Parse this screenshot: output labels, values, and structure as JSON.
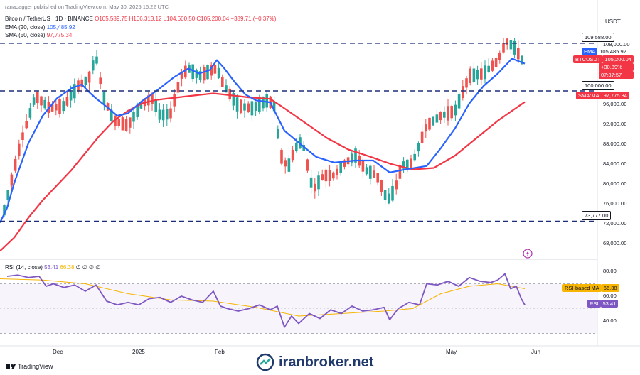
{
  "header": {
    "title": "ranadagger published on TradingView.com, May 30, 2025 16:22 UTC"
  },
  "legend": {
    "symbol": "Bitcoin / TetherUS · 1D · BINANCE",
    "ohlc": "O105,589.75 H106,313.12 L104,600.50 C105,200.04 −389.71 (−0.37%)",
    "ema_label": "EMA (20, close)",
    "ema_value": "105,485.92",
    "sma_label": "SMA (50, close)",
    "sma_value": "97,775.34",
    "rsi_label": "RSI (14, close)",
    "rsi_value": "53.41",
    "rsi_ma_value": "66.38",
    "rsi_extra": "∅ ∅ ∅ ∅"
  },
  "axis": {
    "currency": "USDT",
    "price_ticks": [
      "108,000.00",
      "96,000.00",
      "92,000.00",
      "88,000.00",
      "84,000.00",
      "80,000.00",
      "76,000.00",
      "72,000.00",
      "68,000.00"
    ],
    "rsi_ticks": [
      "80.00",
      "60.00",
      "40.00"
    ],
    "time_labels": [
      "Dec",
      "2025",
      "Feb",
      "May",
      "Jun"
    ]
  },
  "tags": {
    "r1": "109,588.00",
    "ema": "EMA",
    "ema_val": "105,485.92",
    "sym": "BTCUSDT",
    "sym_val": "105,200.04",
    "pct": "+30.89%",
    "timer": "07:37:57",
    "r2": "100,000.00",
    "sma": "SMA:MA",
    "sma_val": "97,775.34",
    "s1": "73,777.00",
    "rsi_ma": "RSI-based MA",
    "rsi_ma_val": "66.38",
    "rsi": "RSI",
    "rsi_val": "53.41"
  },
  "footer": {
    "logo_text": "TradingView",
    "watermark": "iranbroker.net"
  },
  "colors": {
    "up": "#26a69a",
    "down": "#ef5350",
    "ema": "#2962ff",
    "sma": "#f23645",
    "rsi": "#7e57c2",
    "rsi_ma": "#f7b500",
    "level": "#1e2f7a"
  },
  "chart_data": {
    "type": "candlestick",
    "horizontal_levels": [
      109588,
      100000,
      73777
    ],
    "ema_20": [
      [
        0,
        73500
      ],
      [
        10,
        76500
      ],
      [
        20,
        81500
      ],
      [
        40,
        89500
      ],
      [
        60,
        95000
      ],
      [
        80,
        98500
      ],
      [
        100,
        100500
      ],
      [
        115,
        101300
      ],
      [
        125,
        99800
      ],
      [
        135,
        98500
      ],
      [
        150,
        96800
      ],
      [
        165,
        95000
      ],
      [
        180,
        95500
      ],
      [
        200,
        98000
      ],
      [
        220,
        100000
      ],
      [
        245,
        102800
      ],
      [
        265,
        104500
      ],
      [
        280,
        103500
      ],
      [
        295,
        104200
      ],
      [
        305,
        106200
      ],
      [
        315,
        104600
      ],
      [
        330,
        101800
      ],
      [
        345,
        99300
      ],
      [
        360,
        98100
      ],
      [
        380,
        97700
      ],
      [
        400,
        92000
      ],
      [
        425,
        89000
      ],
      [
        445,
        86700
      ],
      [
        470,
        85600
      ],
      [
        500,
        86000
      ],
      [
        525,
        86000
      ],
      [
        548,
        83600
      ],
      [
        570,
        84200
      ],
      [
        600,
        84900
      ],
      [
        620,
        88500
      ],
      [
        640,
        92500
      ],
      [
        660,
        97500
      ],
      [
        680,
        101000
      ],
      [
        700,
        103500
      ],
      [
        720,
        106500
      ],
      [
        738,
        105486
      ]
    ],
    "sma_50": [
      [
        0,
        67800
      ],
      [
        20,
        70500
      ],
      [
        40,
        74500
      ],
      [
        60,
        78000
      ],
      [
        80,
        81000
      ],
      [
        100,
        84000
      ],
      [
        120,
        87500
      ],
      [
        140,
        91000
      ],
      [
        160,
        94000
      ],
      [
        180,
        96000
      ],
      [
        200,
        97500
      ],
      [
        220,
        98200
      ],
      [
        250,
        98700
      ],
      [
        280,
        99200
      ],
      [
        300,
        99500
      ],
      [
        320,
        99200
      ],
      [
        350,
        98700
      ],
      [
        380,
        98400
      ],
      [
        400,
        96500
      ],
      [
        430,
        93500
      ],
      [
        460,
        90500
      ],
      [
        490,
        88200
      ],
      [
        520,
        86800
      ],
      [
        550,
        85300
      ],
      [
        580,
        84200
      ],
      [
        610,
        84500
      ],
      [
        640,
        87000
      ],
      [
        670,
        90500
      ],
      [
        700,
        94000
      ],
      [
        720,
        96000
      ],
      [
        738,
        97775
      ]
    ],
    "rsi_14": [
      [
        10,
        76
      ],
      [
        25,
        77
      ],
      [
        40,
        75
      ],
      [
        55,
        76
      ],
      [
        65,
        68
      ],
      [
        75,
        70
      ],
      [
        90,
        67
      ],
      [
        105,
        69
      ],
      [
        120,
        64
      ],
      [
        135,
        69
      ],
      [
        150,
        56
      ],
      [
        165,
        53
      ],
      [
        180,
        55
      ],
      [
        195,
        53
      ],
      [
        210,
        58
      ],
      [
        225,
        59
      ],
      [
        240,
        55
      ],
      [
        255,
        60
      ],
      [
        270,
        57
      ],
      [
        285,
        55
      ],
      [
        300,
        64
      ],
      [
        310,
        52
      ],
      [
        320,
        50
      ],
      [
        335,
        48
      ],
      [
        350,
        50
      ],
      [
        365,
        53
      ],
      [
        380,
        49
      ],
      [
        390,
        52
      ],
      [
        400,
        35
      ],
      [
        410,
        44
      ],
      [
        420,
        38
      ],
      [
        435,
        46
      ],
      [
        450,
        42
      ],
      [
        465,
        49
      ],
      [
        480,
        46
      ],
      [
        495,
        52
      ],
      [
        510,
        48
      ],
      [
        525,
        49
      ],
      [
        540,
        51
      ],
      [
        548,
        41
      ],
      [
        560,
        50
      ],
      [
        575,
        55
      ],
      [
        590,
        53
      ],
      [
        600,
        70
      ],
      [
        615,
        69
      ],
      [
        630,
        72
      ],
      [
        645,
        68
      ],
      [
        660,
        75
      ],
      [
        675,
        72
      ],
      [
        690,
        71
      ],
      [
        700,
        73
      ],
      [
        710,
        78
      ],
      [
        718,
        66
      ],
      [
        726,
        68
      ],
      [
        733,
        58
      ],
      [
        738,
        53
      ]
    ],
    "rsi_ma": [
      [
        0,
        74
      ],
      [
        60,
        73
      ],
      [
        120,
        70
      ],
      [
        180,
        62
      ],
      [
        240,
        57
      ],
      [
        300,
        56
      ],
      [
        360,
        51
      ],
      [
        420,
        44
      ],
      [
        480,
        46
      ],
      [
        540,
        48
      ],
      [
        580,
        50
      ],
      [
        620,
        62
      ],
      [
        660,
        68
      ],
      [
        700,
        70
      ],
      [
        738,
        66
      ]
    ],
    "rsi_levels": [
      70,
      30
    ],
    "rsi_ylim": [
      20,
      85
    ],
    "price_ylim": [
      64000,
      114000
    ]
  }
}
